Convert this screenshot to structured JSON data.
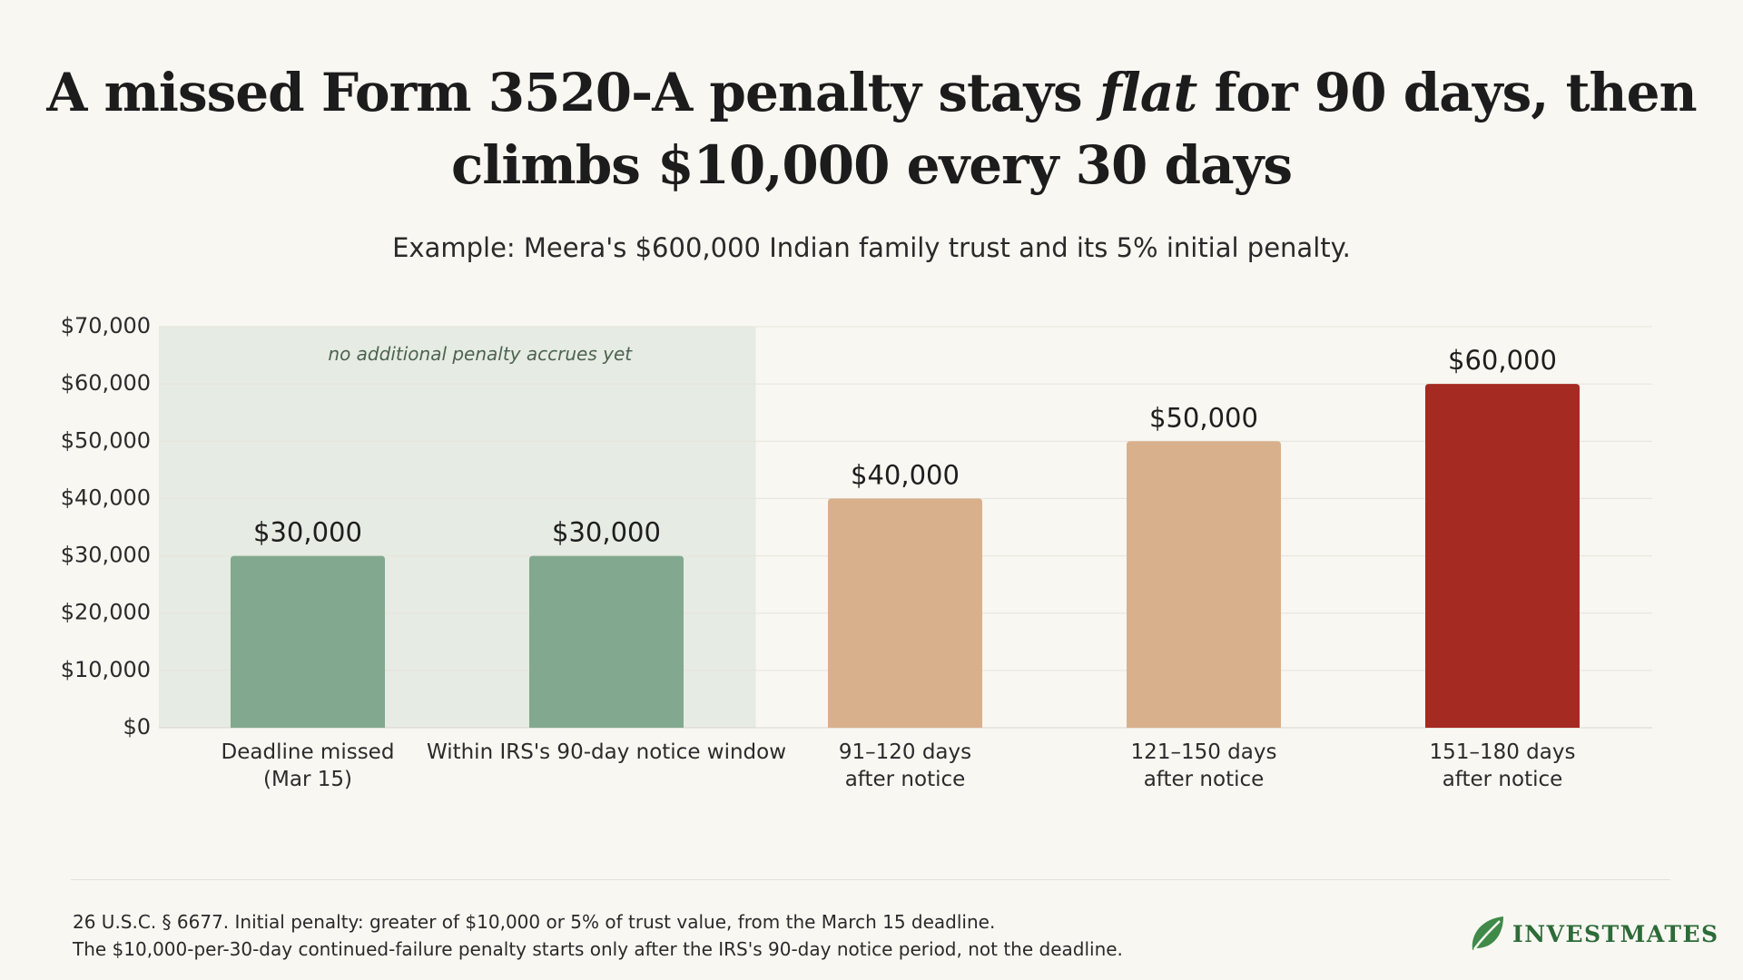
{
  "title": {
    "part1": "A missed Form 3520-A penalty stays ",
    "emphasis": "flat",
    "part2": " for 90 days, then climbs $10,000 every 30 days"
  },
  "subtitle": "Example: Meera's $600,000 Indian family trust and its 5% initial penalty.",
  "chart_data": {
    "type": "bar",
    "categories": [
      [
        "Deadline missed",
        "(Mar 15)"
      ],
      [
        "Within IRS's 90-day notice window"
      ],
      [
        "91–120 days",
        "after notice"
      ],
      [
        "121–150 days",
        "after notice"
      ],
      [
        "151–180 days",
        "after notice"
      ]
    ],
    "values": [
      30000,
      30000,
      40000,
      50000,
      60000
    ],
    "value_labels": [
      "$30,000",
      "$30,000",
      "$40,000",
      "$50,000",
      "$60,000"
    ],
    "bar_colors": [
      "#82a98f",
      "#82a98f",
      "#d9b08c",
      "#d9b08c",
      "#a52a22"
    ],
    "ylim": [
      0,
      70000
    ],
    "yticks": [
      0,
      10000,
      20000,
      30000,
      40000,
      50000,
      60000,
      70000
    ],
    "ytick_labels": [
      "$0",
      "$10,000",
      "$20,000",
      "$30,000",
      "$40,000",
      "$50,000",
      "$60,000",
      "$70,000"
    ],
    "grid": true,
    "shaded_region": {
      "from_category": 0,
      "to_category": 1,
      "label": "no additional penalty accrues yet",
      "color": "#e6ebe3"
    },
    "xlabel": "",
    "ylabel": ""
  },
  "footnote": {
    "line1": "26 U.S.C. § 6677. Initial penalty: greater of $10,000 or 5% of trust value, from the March 15 deadline.",
    "line2": "The $10,000-per-30-day continued-failure penalty starts only after the IRS's 90-day notice period, not the deadline."
  },
  "brand": {
    "name": "INVESTMATES",
    "icon": "leaf-icon",
    "color": "#2d6b38"
  }
}
